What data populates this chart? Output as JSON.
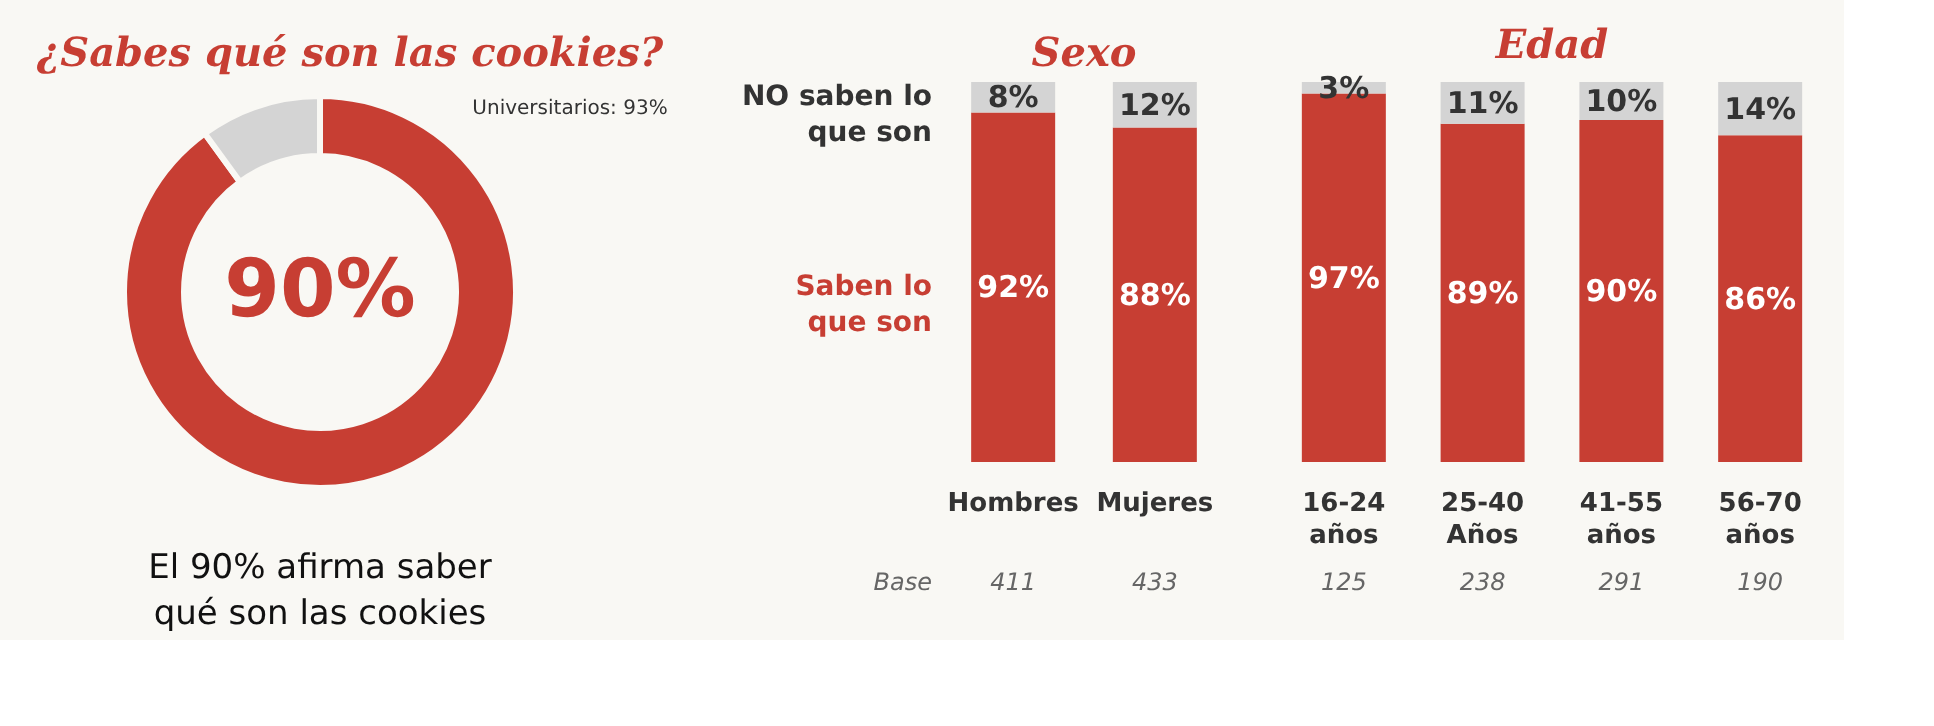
{
  "chart_data": [
    {
      "type": "donut",
      "title": "¿Sabes qué son las cookies?",
      "categories": [
        null,
        null
      ],
      "values": [
        90,
        10
      ],
      "colors": [
        "#c73e33",
        "#d4d4d4"
      ],
      "value_labels": [
        "90%",
        null
      ],
      "annotations": [
        "Universitarios: 93%",
        "El 90% afirma saber qué son las cookies"
      ]
    },
    {
      "type": "bar",
      "title": "Sexo",
      "stacked": true,
      "tick_labels": "x",
      "categories": [
        "Hombres",
        "Mujeres"
      ],
      "series": [
        {
          "name": "Saben lo que son",
          "color": "#c73e33",
          "values": [
            92,
            88
          ],
          "value_labels": [
            "92%",
            "88%"
          ]
        },
        {
          "name": "NO saben lo que son",
          "color": "#d4d4d4",
          "values": [
            8,
            12
          ],
          "value_labels": [
            "8%",
            "12%"
          ]
        }
      ],
      "annotations": [
        "Base",
        "411",
        "433"
      ]
    },
    {
      "type": "bar",
      "title": "Edad",
      "stacked": true,
      "tick_labels": "x",
      "categories": [
        "16-24 años",
        "25-40 Años",
        "41-55 años",
        "56-70 años"
      ],
      "series": [
        {
          "color": "#c73e33",
          "values": [
            97,
            89,
            90,
            86
          ],
          "value_labels": [
            "97%",
            "89%",
            "90%",
            "86%"
          ]
        },
        {
          "color": "#d4d4d4",
          "values": [
            3,
            11,
            10,
            14
          ],
          "value_labels": [
            "3%",
            "11%",
            "10%",
            "14%"
          ]
        }
      ],
      "annotations": [
        "125",
        "238",
        "291",
        "190"
      ]
    }
  ]
}
